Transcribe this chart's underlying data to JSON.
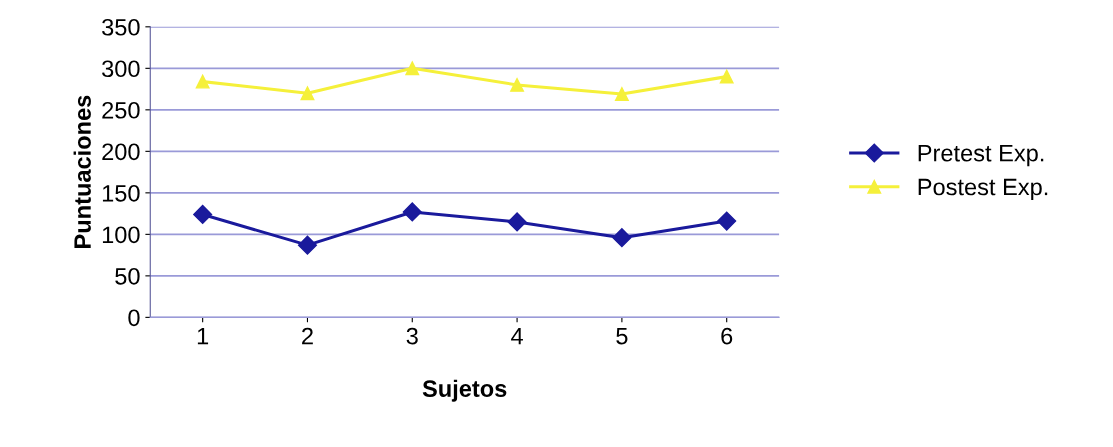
{
  "chart_data": {
    "type": "line",
    "xlabel": "Sujetos",
    "ylabel": "Puntuaciones",
    "categories": [
      "1",
      "2",
      "3",
      "4",
      "5",
      "6"
    ],
    "series": [
      {
        "name": "Pretest Exp.",
        "color": "#1a1a9c",
        "marker": "diamond",
        "values": [
          124,
          87,
          127,
          115,
          96,
          116
        ]
      },
      {
        "name": "Postest Exp.",
        "color": "#f5f03a",
        "marker": "triangle",
        "values": [
          284,
          270,
          300,
          280,
          269,
          290
        ]
      }
    ],
    "ylim": [
      0,
      350
    ],
    "yticks": [
      0,
      50,
      100,
      150,
      200,
      250,
      300,
      350
    ],
    "grid": "y",
    "legend": "right",
    "line_style": "solid"
  }
}
